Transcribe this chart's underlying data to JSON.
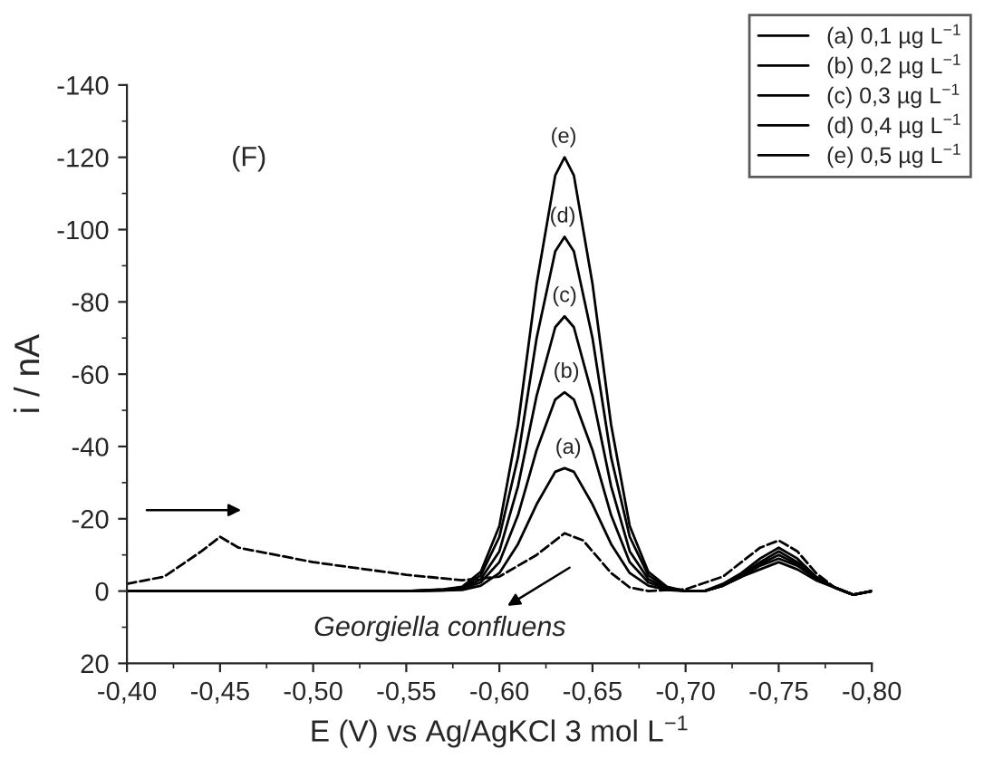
{
  "chart_data": {
    "type": "line",
    "xlabel": "E (V) vs Ag/AgKCl 3 mol L$^{−1}$",
    "ylabel": "i / nA",
    "x": [
      -0.4,
      -0.5,
      -0.55,
      -0.57,
      -0.58,
      -0.59,
      -0.6,
      -0.61,
      -0.62,
      -0.63,
      -0.635,
      -0.64,
      -0.65,
      -0.66,
      -0.67,
      -0.68,
      -0.69,
      -0.7,
      -0.71,
      -0.72,
      -0.73,
      -0.74,
      -0.75,
      -0.76,
      -0.77,
      -0.78,
      -0.79,
      -0.8
    ],
    "series": [
      {
        "name": "(a) 0,1 µg L$^{−1}$",
        "color": "#000000",
        "values": [
          0,
          0,
          0,
          -0.2,
          -0.3,
          -1.5,
          -5,
          -13,
          -24,
          -33,
          -34,
          -33,
          -24,
          -13,
          -5,
          -1.5,
          -0.3,
          0,
          0,
          -1.5,
          -4,
          -6,
          -8,
          -6,
          -3,
          -1,
          1,
          0
        ]
      },
      {
        "name": "(b) 0,2 µg L$^{−1}$",
        "color": "#000000",
        "values": [
          0,
          0,
          0,
          -0.2,
          -0.6,
          -2.4,
          -8,
          -21,
          -39,
          -53,
          -55,
          -53,
          -39,
          -21,
          -8,
          -2.4,
          -0.6,
          0,
          0,
          -1.5,
          -4,
          -7,
          -9,
          -7,
          -3.5,
          -1,
          1,
          0
        ]
      },
      {
        "name": "(c) 0,3 µg L$^{−1}$",
        "color": "#000000",
        "values": [
          0,
          0,
          0,
          -0.3,
          -0.8,
          -3.3,
          -11,
          -29,
          -54,
          -73,
          -76,
          -73,
          -54,
          -29,
          -11,
          -3.3,
          -0.8,
          0,
          0,
          -1.5,
          -4,
          -7.5,
          -10,
          -7.5,
          -3.5,
          -1,
          1,
          0
        ]
      },
      {
        "name": "(d) 0,4 µg L$^{−1}$",
        "color": "#000000",
        "values": [
          0,
          0,
          0,
          -0.4,
          -1,
          -4.3,
          -15,
          -37,
          -70,
          -94,
          -98,
          -94,
          -70,
          -37,
          -15,
          -4.3,
          -1,
          0,
          0,
          -1.5,
          -4.5,
          -8,
          -11,
          -8,
          -4,
          -1,
          1,
          0
        ]
      },
      {
        "name": "(e) 0,5 µg L$^{−1}$",
        "color": "#000000",
        "values": [
          0,
          0,
          0,
          -0.5,
          -1.2,
          -5.3,
          -18,
          -46,
          -85,
          -115,
          -120,
          -115,
          -85,
          -46,
          -18,
          -5.3,
          -1.2,
          0,
          0,
          -2,
          -5,
          -9,
          -12,
          -9,
          -4,
          -1,
          1,
          0
        ]
      },
      {
        "color": "#000000",
        "line_style": "dashed",
        "x": [
          -0.4,
          -0.42,
          -0.44,
          -0.45,
          -0.46,
          -0.5,
          -0.55,
          -0.58,
          -0.6,
          -0.62,
          -0.635,
          -0.645,
          -0.66,
          -0.67,
          -0.68,
          -0.7,
          -0.72,
          -0.74,
          -0.75,
          -0.76,
          -0.77,
          -0.78,
          -0.79,
          -0.8
        ],
        "values": [
          -2,
          -4,
          -11,
          -15,
          -12,
          -8,
          -4.5,
          -3,
          -4,
          -10,
          -16,
          -14,
          -5,
          -1,
          0,
          -0.5,
          -4,
          -12,
          -14,
          -11,
          -5,
          -1,
          1,
          0
        ]
      }
    ],
    "xlim": [
      -0.4,
      -0.8
    ],
    "ylim": [
      20,
      -140
    ],
    "xticks": [
      {
        "value": -0.4,
        "label": "-0,40"
      },
      {
        "value": -0.45,
        "label": "-0,45"
      },
      {
        "value": -0.5,
        "label": "-0,50"
      },
      {
        "value": -0.55,
        "label": "-0,55"
      },
      {
        "value": -0.6,
        "label": "-0,60"
      },
      {
        "value": -0.65,
        "label": "-0,65"
      },
      {
        "value": -0.7,
        "label": "-0,70"
      },
      {
        "value": -0.75,
        "label": "-0,75"
      },
      {
        "value": -0.8,
        "label": "-0,80"
      }
    ],
    "yticks": [
      -140,
      -120,
      -100,
      -80,
      -60,
      -40,
      -20,
      0,
      20
    ],
    "annotations": [
      "(F)",
      {
        "text": "(a)",
        "x": -0.637,
        "y": -34
      },
      {
        "text": "(b)",
        "x": -0.636,
        "y": -55
      },
      {
        "text": "(c)",
        "x": -0.635,
        "y": -76
      },
      {
        "text": "(d)",
        "x": -0.634,
        "y": -98
      },
      {
        "text": "(e)",
        "x": -0.6345,
        "y": -120
      },
      "Georgiella confluens"
    ],
    "legend": "top right",
    "grid": false
  }
}
